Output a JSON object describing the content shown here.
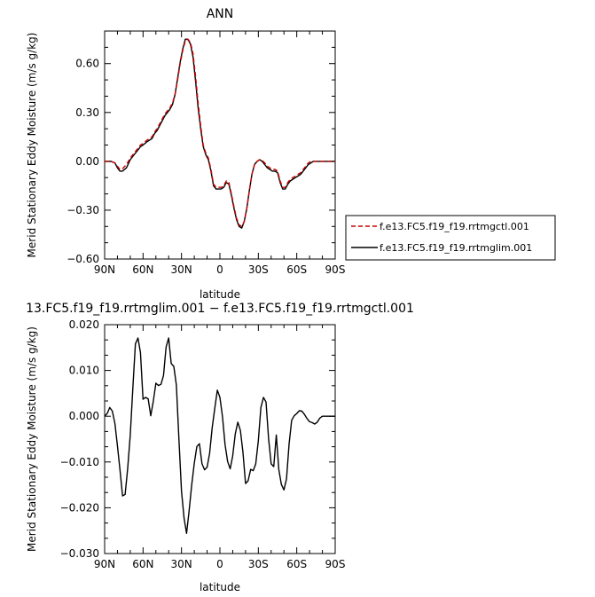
{
  "chart_data": [
    {
      "type": "line",
      "title": "ANN",
      "xlabel": "latitude",
      "ylabel": "Merid Stationary Eddy Moisture (m/s g/kg)",
      "xlim": [
        90,
        -90
      ],
      "ylim": [
        -0.6,
        0.8
      ],
      "x_ticks": [
        90,
        60,
        30,
        0,
        -30,
        -60,
        -90
      ],
      "x_tick_labels": [
        "90N",
        "60N",
        "30N",
        "0",
        "30S",
        "60S",
        "90S"
      ],
      "y_ticks": [
        -0.6,
        -0.3,
        0.0,
        0.3,
        0.6
      ],
      "y_tick_labels": [
        "−0.60",
        "−0.30",
        "0.00",
        "0.30",
        "0.60"
      ],
      "grid": false,
      "legend_position": "right",
      "series": [
        {
          "name": "f.e13.FC5.f19_f19.rrtmgctl.001",
          "color": "#cc0000",
          "dash": "dashed",
          "x": [
            90,
            85,
            82,
            80,
            78,
            76,
            73,
            70,
            67,
            64,
            62,
            60,
            57,
            55,
            53,
            51,
            49,
            47,
            45,
            43,
            41,
            39,
            37,
            35,
            33,
            31,
            29,
            27,
            25,
            23,
            21,
            19,
            17,
            15,
            13,
            11,
            9,
            7,
            5,
            3,
            1,
            -1,
            -3,
            -5,
            -7,
            -9,
            -11,
            -13,
            -15,
            -17,
            -19,
            -21,
            -23,
            -25,
            -27,
            -29,
            -31,
            -33,
            -35,
            -37,
            -39,
            -41,
            -43,
            -45,
            -47,
            -49,
            -51,
            -53,
            -55,
            -57,
            -59,
            -61,
            -63,
            -65,
            -67,
            -69,
            -71,
            -73,
            -75,
            -77,
            -79,
            -81,
            -83,
            -85,
            -87,
            -90
          ],
          "y": [
            0.0,
            0.0,
            -0.01,
            -0.03,
            -0.05,
            -0.045,
            -0.02,
            0.02,
            0.05,
            0.08,
            0.1,
            0.11,
            0.13,
            0.14,
            0.15,
            0.18,
            0.2,
            0.23,
            0.26,
            0.29,
            0.31,
            0.33,
            0.36,
            0.41,
            0.5,
            0.6,
            0.68,
            0.74,
            0.75,
            0.73,
            0.66,
            0.52,
            0.36,
            0.22,
            0.1,
            0.05,
            0.02,
            -0.05,
            -0.14,
            -0.16,
            -0.16,
            -0.16,
            -0.15,
            -0.12,
            -0.13,
            -0.2,
            -0.28,
            -0.35,
            -0.39,
            -0.4,
            -0.37,
            -0.29,
            -0.18,
            -0.08,
            -0.02,
            0.0,
            0.01,
            0.005,
            -0.01,
            -0.03,
            -0.04,
            -0.05,
            -0.05,
            -0.06,
            -0.12,
            -0.16,
            -0.16,
            -0.13,
            -0.11,
            -0.1,
            -0.09,
            -0.08,
            -0.07,
            -0.05,
            -0.03,
            -0.01,
            0.0,
            0.0,
            0.0,
            0.0,
            0.0,
            0.0,
            0.0,
            0.0,
            0.0,
            0.0
          ]
        },
        {
          "name": "f.e13.FC5.f19_f19.rrtmglim.001",
          "color": "#000000",
          "dash": "solid",
          "x": [
            90,
            85,
            82,
            80,
            78,
            76,
            73,
            70,
            67,
            64,
            62,
            60,
            57,
            55,
            53,
            51,
            49,
            47,
            45,
            43,
            41,
            39,
            37,
            35,
            33,
            31,
            29,
            27,
            25,
            23,
            21,
            19,
            17,
            15,
            13,
            11,
            9,
            7,
            5,
            3,
            1,
            -1,
            -3,
            -5,
            -7,
            -9,
            -11,
            -13,
            -15,
            -17,
            -19,
            -21,
            -23,
            -25,
            -27,
            -29,
            -31,
            -33,
            -35,
            -37,
            -39,
            -41,
            -43,
            -45,
            -47,
            -49,
            -51,
            -53,
            -55,
            -57,
            -59,
            -61,
            -63,
            -65,
            -67,
            -69,
            -71,
            -73,
            -75,
            -77,
            -79,
            -81,
            -83,
            -85,
            -87,
            -90
          ],
          "y": [
            0.0,
            0.0,
            -0.01,
            -0.04,
            -0.06,
            -0.06,
            -0.04,
            0.01,
            0.04,
            0.07,
            0.09,
            0.1,
            0.12,
            0.13,
            0.14,
            0.17,
            0.19,
            0.22,
            0.25,
            0.28,
            0.3,
            0.32,
            0.35,
            0.41,
            0.51,
            0.61,
            0.69,
            0.75,
            0.75,
            0.72,
            0.64,
            0.49,
            0.33,
            0.2,
            0.09,
            0.04,
            0.01,
            -0.06,
            -0.15,
            -0.17,
            -0.17,
            -0.17,
            -0.16,
            -0.13,
            -0.14,
            -0.21,
            -0.29,
            -0.36,
            -0.4,
            -0.41,
            -0.37,
            -0.29,
            -0.18,
            -0.08,
            -0.02,
            0.0,
            0.01,
            0.0,
            -0.02,
            -0.04,
            -0.05,
            -0.06,
            -0.06,
            -0.07,
            -0.13,
            -0.17,
            -0.17,
            -0.14,
            -0.12,
            -0.11,
            -0.1,
            -0.09,
            -0.08,
            -0.06,
            -0.04,
            -0.02,
            -0.01,
            0.0,
            0.0,
            0.0,
            0.0,
            0.0,
            0.0,
            0.0,
            0.0,
            0.0
          ]
        }
      ]
    },
    {
      "type": "line",
      "title": "13.FC5.f19_f19.rrtmglim.001 − f.e13.FC5.f19_f19.rrtmgctl.001",
      "xlabel": "latitude",
      "ylabel": "Merid Stationary Eddy Moisture (m/s g/kg)",
      "xlim": [
        90,
        -90
      ],
      "ylim": [
        -0.03,
        0.02
      ],
      "x_ticks": [
        90,
        60,
        30,
        0,
        -30,
        -60,
        -90
      ],
      "x_tick_labels": [
        "90N",
        "60N",
        "30N",
        "0",
        "30S",
        "60S",
        "90S"
      ],
      "y_ticks": [
        -0.03,
        -0.02,
        -0.01,
        0.0,
        0.01,
        0.02
      ],
      "y_tick_labels": [
        "−0.030",
        "−0.020",
        "−0.010",
        "0.000",
        "0.010",
        "0.020"
      ],
      "grid": false,
      "series": [
        {
          "color": "#000000",
          "dash": "solid",
          "x": [
            90,
            88,
            86,
            84,
            82,
            80,
            78,
            76,
            74,
            72,
            70,
            68,
            66,
            64,
            62,
            60,
            58,
            56,
            54,
            52,
            50,
            48,
            46,
            44,
            42,
            40,
            38,
            36,
            34,
            32,
            30,
            28,
            26,
            24,
            22,
            20,
            18,
            16,
            14,
            12,
            10,
            8,
            6,
            4,
            2,
            0,
            -2,
            -4,
            -6,
            -8,
            -10,
            -12,
            -14,
            -16,
            -18,
            -20,
            -22,
            -24,
            -26,
            -28,
            -30,
            -32,
            -34,
            -36,
            -38,
            -40,
            -42,
            -44,
            -46,
            -48,
            -50,
            -52,
            -54,
            -56,
            -58,
            -60,
            -62,
            -64,
            -66,
            -68,
            -70,
            -72,
            -74,
            -76,
            -78,
            -80,
            -82,
            -84,
            -86,
            -88,
            -90
          ],
          "y": [
            0.0,
            0.0006,
            0.0019,
            0.0011,
            -0.0016,
            -0.0064,
            -0.0117,
            -0.0174,
            -0.0171,
            -0.0114,
            -0.0041,
            0.0061,
            0.0158,
            0.0171,
            0.0139,
            0.0037,
            0.0041,
            0.0038,
            0.0001,
            0.0033,
            0.0072,
            0.0067,
            0.007,
            0.0089,
            0.0151,
            0.0171,
            0.0115,
            0.0109,
            0.0068,
            -0.0051,
            -0.0164,
            -0.0223,
            -0.0256,
            -0.0206,
            -0.015,
            -0.0103,
            -0.0066,
            -0.006,
            -0.0104,
            -0.0117,
            -0.0111,
            -0.0081,
            -0.0025,
            0.0017,
            0.0057,
            0.0041,
            -0.0001,
            -0.0062,
            -0.0099,
            -0.0115,
            -0.0087,
            -0.0039,
            -0.0013,
            -0.0031,
            -0.0079,
            -0.0147,
            -0.0141,
            -0.0116,
            -0.0119,
            -0.0104,
            -0.0054,
            0.0019,
            0.0041,
            0.0031,
            -0.0049,
            -0.0104,
            -0.011,
            -0.0041,
            -0.0116,
            -0.0149,
            -0.0161,
            -0.0137,
            -0.0061,
            -0.0009,
            0.0001,
            0.0006,
            0.0012,
            0.0011,
            0.0004,
            -0.0005,
            -0.0012,
            -0.0014,
            -0.0017,
            -0.0013,
            -0.0004,
            0.0,
            0.0,
            0.0,
            0.0,
            0.0,
            0.0
          ]
        }
      ]
    }
  ]
}
